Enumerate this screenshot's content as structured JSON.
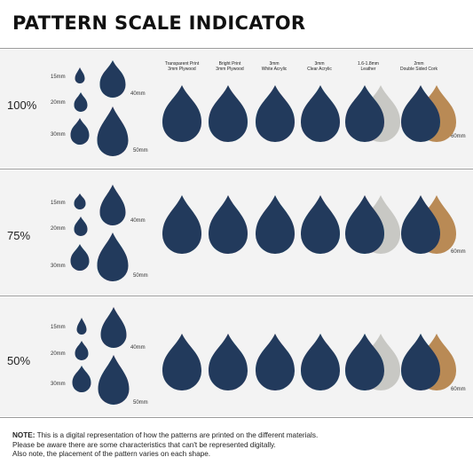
{
  "title": "PATTERN SCALE INDICATOR",
  "materials": [
    {
      "line1": "Transparent Print",
      "line2": "3mm Plywood"
    },
    {
      "line1": "Bright Print",
      "line2": "3mm Plywood"
    },
    {
      "line1": "3mm",
      "line2": "White Acrylic"
    },
    {
      "line1": "3mm",
      "line2": "Clear Acrylic"
    },
    {
      "line1": "1.6-1.8mm",
      "line2": "Leather"
    },
    {
      "line1": "2mm",
      "line2": "Double Sided Cork"
    }
  ],
  "rows": [
    {
      "scale": "100%",
      "sizes": [
        "15mm",
        "20mm",
        "30mm",
        "40mm",
        "50mm"
      ],
      "material_size": "60mm"
    },
    {
      "scale": "75%",
      "sizes": [
        "15mm",
        "20mm",
        "30mm",
        "40mm",
        "50mm"
      ],
      "material_size": "60mm"
    },
    {
      "scale": "50%",
      "sizes": [
        "15mm",
        "20mm",
        "30mm",
        "40mm",
        "50mm"
      ],
      "material_size": "60mm"
    }
  ],
  "note": {
    "label": "NOTE:",
    "line1": " This is a digital representation of how the patterns are printed on the different materials.",
    "line2": "Please be aware there are some characteristics that can't be represented digitally.",
    "line3": "Also note, the placement of the pattern varies on each shape."
  },
  "colors": {
    "pattern_bg": "#223a5c",
    "egg_pink": "#e77aa8",
    "egg_teal": "#3cc6c9",
    "egg_peach": "#f2c8a8",
    "plywood": "#7b6a58",
    "leather": "#c8c8c4",
    "cork": "#b98a55"
  }
}
